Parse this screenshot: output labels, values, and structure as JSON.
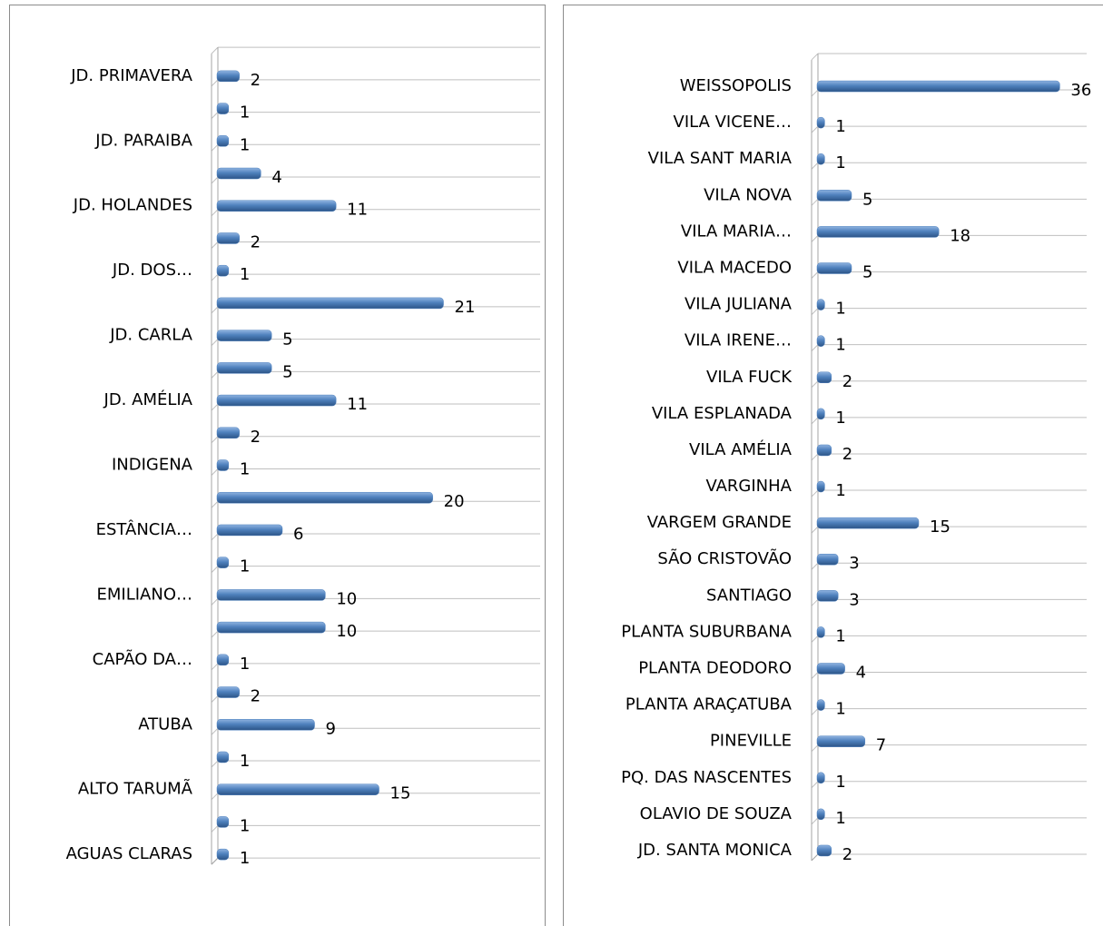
{
  "chart_data": [
    {
      "type": "bar",
      "orientation": "horizontal",
      "color": "#4f81bd",
      "xlim": [
        0,
        30
      ],
      "categories": [
        "JD. PRIMAVERA",
        null,
        "JD. PARAIBA",
        null,
        "JD. HOLANDES",
        null,
        "JD. DOS…",
        null,
        "JD. CARLA",
        null,
        "JD. AMÉLIA",
        null,
        "INDIGENA",
        null,
        "ESTÂNCIA…",
        null,
        "EMILIANO…",
        null,
        "CAPÃO DA…",
        null,
        "ATUBA",
        null,
        "ALTO TARUMÃ",
        null,
        "AGUAS CLARAS"
      ],
      "values": [
        2,
        1,
        1,
        4,
        11,
        2,
        1,
        21,
        5,
        5,
        11,
        2,
        1,
        20,
        6,
        1,
        10,
        10,
        1,
        2,
        9,
        1,
        15,
        1,
        1
      ]
    },
    {
      "type": "bar",
      "orientation": "horizontal",
      "color": "#4f81bd",
      "xlim": [
        0,
        40
      ],
      "categories": [
        "WEISSOPOLIS",
        "VILA VICENE…",
        "VILA SANT MARIA",
        "VILA NOVA",
        "VILA MARIA…",
        "VILA MACEDO",
        "VILA JULIANA",
        "VILA IRENE…",
        "VILA FUCK",
        "VILA ESPLANADA",
        "VILA AMÉLIA",
        "VARGINHA",
        "VARGEM GRANDE",
        "SÃO CRISTOVÃO",
        "SANTIAGO",
        "PLANTA SUBURBANA",
        "PLANTA DEODORO",
        "PLANTA ARAÇATUBA",
        "PINEVILLE",
        "PQ. DAS NASCENTES",
        "OLAVIO DE SOUZA",
        "JD. SANTA MONICA"
      ],
      "values": [
        36,
        1,
        1,
        5,
        18,
        5,
        1,
        1,
        2,
        1,
        2,
        1,
        15,
        3,
        3,
        1,
        4,
        1,
        7,
        1,
        1,
        2
      ]
    }
  ]
}
